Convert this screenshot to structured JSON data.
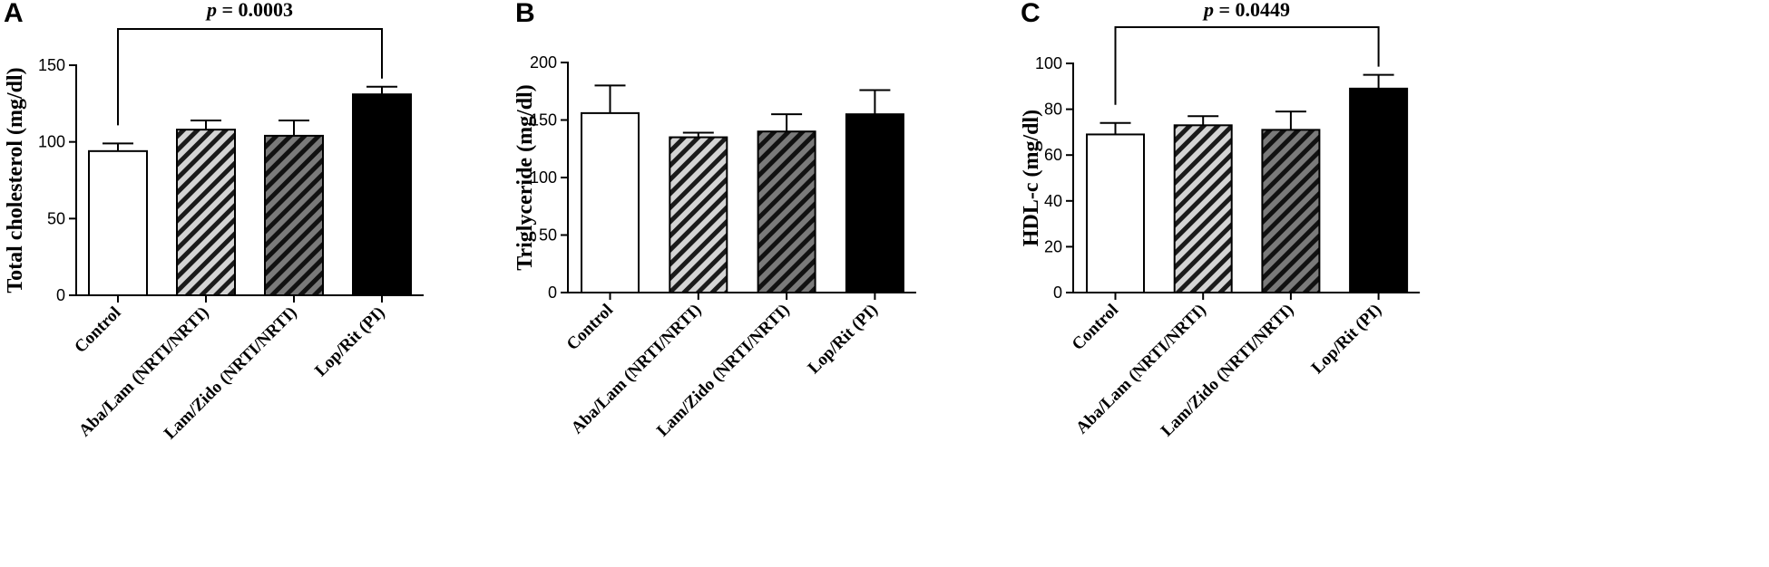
{
  "colors": {
    "axis": "#000000",
    "bar_edge": "#000000",
    "bar_stroke_fill": "#ffffff",
    "black": "#000000",
    "light_hatch_bg": "#d4d4d4",
    "dark_hatch_bg": "#7a7a7a"
  },
  "chart_data": [
    {
      "panel": "A",
      "type": "bar",
      "ylabel": "Total cholesterol (mg/dl)",
      "ylim": [
        0,
        150
      ],
      "yticks": [
        0,
        50,
        100,
        150
      ],
      "categories": [
        "Control",
        "Aba/Lam (NRTI/NRTI)",
        "Lam/Zido (NRTI/NRTI)",
        "Lop/Rit (PI)"
      ],
      "values": [
        94,
        108,
        104,
        131
      ],
      "errors": [
        5,
        6,
        10,
        5
      ],
      "fills": [
        "white",
        "hatch-light",
        "hatch-dark",
        "black"
      ],
      "significance": {
        "from": 0,
        "to": 3,
        "p_italic": "p",
        "p_rest": " = 0.0003"
      }
    },
    {
      "panel": "B",
      "type": "bar",
      "ylabel": "Triglyceride (mg/dl)",
      "ylim": [
        0,
        200
      ],
      "yticks": [
        0,
        50,
        100,
        150,
        200
      ],
      "categories": [
        "Control",
        "Aba/Lam (NRTI/NRTI)",
        "Lam/Zido (NRTI/NRTI)",
        "Lop/Rit (PI)"
      ],
      "values": [
        156,
        135,
        140,
        155
      ],
      "errors": [
        24,
        4,
        15,
        21
      ],
      "fills": [
        "white",
        "hatch-light",
        "hatch-dark",
        "black"
      ]
    },
    {
      "panel": "C",
      "type": "bar",
      "ylabel": "HDL-c (mg/dl)",
      "ylim": [
        0,
        100
      ],
      "yticks": [
        0,
        20,
        40,
        60,
        80,
        100
      ],
      "categories": [
        "Control",
        "Aba/Lam (NRTI/NRTI)",
        "Lam/Zido (NRTI/NRTI)",
        "Lop/Rit (PI)"
      ],
      "values": [
        69,
        73,
        71,
        89
      ],
      "errors": [
        5,
        4,
        8,
        6
      ],
      "fills": [
        "white",
        "hatch-light",
        "hatch-dark",
        "black"
      ],
      "significance": {
        "from": 0,
        "to": 3,
        "p_italic": "p",
        "p_rest": " = 0.0449"
      }
    }
  ]
}
